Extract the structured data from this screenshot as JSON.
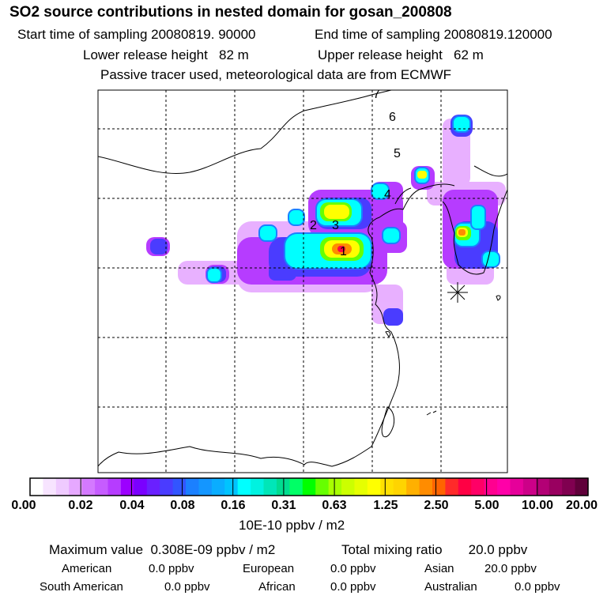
{
  "title": "SO2 source contributions in nested domain for gosan_200808",
  "sampling": {
    "start": "Start time of sampling 20080819. 90000",
    "end": "End time of sampling 20080819.120000"
  },
  "release": {
    "lower": "Lower release height   82 m",
    "upper": "Upper release height   62 m"
  },
  "note": "Passive tracer used, meteorological data are from ECMWF",
  "map_labels": [
    "1",
    "2",
    "3",
    "4",
    "5",
    "6",
    "7"
  ],
  "colorbar": {
    "ticks": [
      "0.00",
      "0.02",
      "0.04",
      "0.08",
      "0.16",
      "0.31",
      "0.63",
      "1.25",
      "2.50",
      "5.00",
      "10.00",
      "20.00"
    ],
    "unit": "10E-10 ppbv / m2",
    "colors": [
      "#ffffff",
      "#f7e4ff",
      "#efcaff",
      "#e6a8ff",
      "#d479ff",
      "#c65cff",
      "#b63cff",
      "#9c00ff",
      "#7a00ff",
      "#6a20ff",
      "#4a3cff",
      "#3255ff",
      "#1b80ff",
      "#1496ff",
      "#0aadff",
      "#00c4ff",
      "#00ffff",
      "#00f2e0",
      "#00e6b8",
      "#00dc90",
      "#00ff66",
      "#00ff00",
      "#66ff00",
      "#a8ff00",
      "#ccff00",
      "#e6ff00",
      "#ffff00",
      "#ffe000",
      "#ffd400",
      "#ffb000",
      "#ff8c00",
      "#ff6400",
      "#ff2a2a",
      "#ff0044",
      "#ff0066",
      "#ff0090",
      "#ff00a8",
      "#e6009a",
      "#cc0088",
      "#b30075",
      "#990060",
      "#800050",
      "#60003a"
    ]
  },
  "summary": {
    "max_label": "Maximum value  0.308E-09 ppbv / m2",
    "total_label": "Total mixing ratio       20.0 ppbv",
    "regions": [
      {
        "name": "American",
        "value": "0.0 ppbv"
      },
      {
        "name": "European",
        "value": "0.0 ppbv"
      },
      {
        "name": "Asian",
        "value": "20.0 ppbv"
      },
      {
        "name": "South American",
        "value": "0.0 ppbv"
      },
      {
        "name": "African",
        "value": "0.0 ppbv"
      },
      {
        "name": "Australian",
        "value": "0.0 ppbv"
      }
    ]
  }
}
